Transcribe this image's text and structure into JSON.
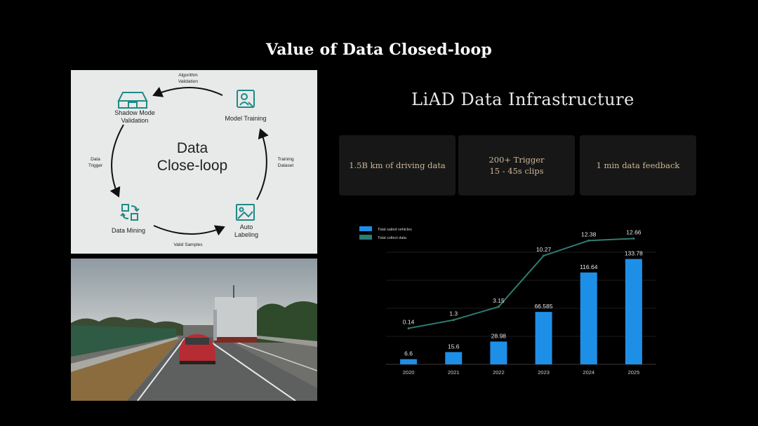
{
  "page": {
    "title": "Value of Data Closed-loop"
  },
  "loop": {
    "center_line1": "Data",
    "center_line2": "Close-loop",
    "nodes": {
      "shadow_mode_1": "Shadow Mode",
      "shadow_mode_2": "Validation",
      "model_training": "Model Training",
      "data_mining": "Data Mining",
      "auto_labeling_1": "Auto",
      "auto_labeling_2": "Labeling"
    },
    "edges": {
      "algorithm_1": "Algorithm",
      "algorithm_2": "Validation",
      "training_1": "Training",
      "training_2": "Dataset",
      "trigger_1": "Data",
      "trigger_2": "Trigger",
      "valid_samples": "Valid Samples"
    },
    "icon_color": "#1f8a85"
  },
  "infra": {
    "title": "LiAD Data Infrastructure",
    "cards": [
      {
        "line1": "1.5B km of driving data",
        "line2": ""
      },
      {
        "line1": "200+ Trigger",
        "line2": "15 - 45s clips"
      },
      {
        "line1": "1 min data feedback",
        "line2": ""
      }
    ],
    "accent_color": "#cbb797"
  },
  "chart_data": {
    "type": "bar",
    "categories": [
      "2020",
      "2021",
      "2022",
      "2023",
      "2024",
      "2025"
    ],
    "series": [
      {
        "name": "Total sailed vehicles",
        "kind": "bar",
        "color": "#1e8fe6",
        "values": [
          6.6,
          15.6,
          28.98,
          66.585,
          116.64,
          133.78
        ],
        "labels": [
          "6.6",
          "15.6",
          "28.98",
          "66.585",
          "116.64",
          "133.78"
        ]
      },
      {
        "name": "Total collect data",
        "kind": "line",
        "color": "#2e7d72",
        "values": [
          0.14,
          1.3,
          3.15,
          10.27,
          12.38,
          12.66
        ],
        "labels": [
          "0.14",
          "1.3",
          "3.15",
          "10.27",
          "12.38",
          "12.66"
        ]
      }
    ],
    "grid": true,
    "legend_position": "top-left"
  }
}
